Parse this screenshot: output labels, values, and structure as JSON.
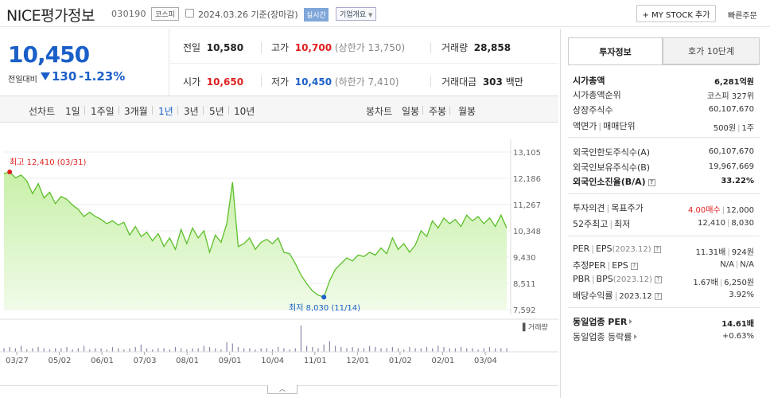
{
  "header": {
    "name": "NICE평가정보",
    "code": "030190",
    "market": "코스피",
    "date": "2024.03.26",
    "basis": "기준(장마감)",
    "live": "실시간",
    "corp_overview": "기업개요",
    "mystock": "+ MY STOCK 추가",
    "fast_order": "빠른주문"
  },
  "price": {
    "current": "10,450",
    "change_label": "전일대비",
    "change": "130",
    "change_pct": "-1.23%",
    "color": "#1a5fc8"
  },
  "quote": {
    "prev_close_label": "전일",
    "prev_close": "10,580",
    "high_label": "고가",
    "high": "10,700",
    "upper_limit": "(상한가 13,750)",
    "volume_label": "거래량",
    "volume": "28,858",
    "open_label": "시가",
    "open": "10,650",
    "low_label": "저가",
    "low": "10,450",
    "lower_limit": "(하한가 7,410)",
    "amount_label": "거래대금",
    "amount": "303",
    "amount_unit": "백만"
  },
  "periods": {
    "line_label": "선차트",
    "items": [
      "1일",
      "1주일",
      "3개월",
      "1년",
      "3년",
      "5년",
      "10년"
    ],
    "active": "1년",
    "candle_label": "봉차트",
    "candle_items": [
      "일봉",
      "주봉",
      "월봉"
    ]
  },
  "chart_data": {
    "type": "area",
    "y_ticks": [
      "13,105",
      "12,186",
      "11,267",
      "10,348",
      "9,430",
      "8,511",
      "7,592"
    ],
    "ylim": [
      7592,
      13105
    ],
    "x_ticks": [
      "03/27",
      "05/02",
      "06/01",
      "07/03",
      "08/01",
      "09/01",
      "10/04",
      "11/01",
      "12/01",
      "01/02",
      "02/01",
      "03/04"
    ],
    "high_annotation": "최고 12,410 (03/31)",
    "low_annotation": "최저 8,030 (11/14)",
    "volume_label": "거래량",
    "series": [
      {
        "values": [
          12350,
          12410,
          12200,
          12300,
          12100,
          11650,
          12000,
          11500,
          11700,
          11300,
          11550,
          11450,
          11250,
          11100,
          10850,
          11000,
          10850,
          10750,
          10600,
          10700,
          10550,
          10650,
          10200,
          10500,
          10150,
          10300,
          10000,
          10250,
          9800,
          10100,
          9700,
          10400,
          9900,
          10450,
          10100,
          10350,
          9600,
          10200,
          9950,
          10600,
          12050,
          9800,
          9900,
          10100,
          9700,
          9950,
          10050,
          9900,
          10100,
          9600,
          9550,
          9200,
          8800,
          8500,
          8250,
          8100,
          8030,
          8600,
          9000,
          9200,
          9400,
          9300,
          9500,
          9450,
          9600,
          9500,
          9750,
          9550,
          10100,
          9700,
          9900,
          9600,
          9850,
          10350,
          10150,
          10700,
          10450,
          10800,
          10600,
          10750,
          10500,
          10900,
          10700,
          10850,
          10600,
          10800,
          10500,
          10900,
          10450
        ]
      }
    ],
    "volume": [
      3,
      4,
      3,
      5,
      2,
      3,
      4,
      3,
      2,
      3,
      3,
      4,
      2,
      3,
      5,
      2,
      3,
      3,
      2,
      4,
      3,
      2,
      3,
      4,
      6,
      3,
      2,
      3,
      3,
      2,
      4,
      3,
      2,
      3,
      3,
      5,
      4,
      3,
      2,
      8,
      7,
      4,
      3,
      3,
      2,
      3,
      3,
      2,
      4,
      3,
      2,
      3,
      22,
      5,
      4,
      3,
      6,
      9,
      5,
      4,
      3,
      4,
      3,
      3,
      5,
      4,
      3,
      3,
      4,
      3,
      2,
      4,
      3,
      3,
      4,
      3,
      5,
      4,
      3,
      3,
      4,
      3,
      3,
      2,
      3,
      4,
      3,
      3,
      3
    ],
    "colors": {
      "line": "#5cbf2a",
      "fill_top": "#c8f0a8",
      "fill_bottom": "#f0fbe8",
      "high": "#e02020",
      "low": "#1a5fc8"
    }
  },
  "side_panel": {
    "tab_invest": "투자정보",
    "tab_hoga": "호가 10단계",
    "market_cap_label": "시가총액",
    "market_cap": "6,281억원",
    "cap_rank_label": "시가총액순위",
    "cap_rank": "코스피 327위",
    "shares_label": "상장주식수",
    "shares": "60,107,670",
    "par_label": "액면가",
    "unit_label": "매매단위",
    "par": "500원",
    "unit": "1주",
    "foreign_limit_label": "외국인한도주식수(A)",
    "foreign_limit": "60,107,670",
    "foreign_hold_label": "외국인보유주식수(B)",
    "foreign_hold": "19,967,669",
    "foreign_ratio_label": "외국인소진율(B/A)",
    "foreign_ratio": "33.22%",
    "opinion_label": "투자의견",
    "target_label": "목표주가",
    "opinion": "4.00매수",
    "target": "12,000",
    "w52_label": "52주최고",
    "w52_low_label": "최저",
    "w52_high": "12,410",
    "w52_low": "8,030",
    "per_label": "PER",
    "eps_label": "EPS",
    "eps_year": "(2023.12)",
    "per": "11.31배",
    "eps": "924원",
    "est_per_label": "추정PER",
    "est_eps_label": "EPS",
    "est_per": "N/A",
    "est_eps": "N/A",
    "pbr_label": "PBR",
    "bps_label": "BPS",
    "bps_year": "(2023.12)",
    "pbr": "1.67배",
    "bps": "6,250원",
    "div_label": "배당수익률",
    "div_year": "2023.12",
    "div": "3.92%",
    "sector_per_label": "동일업종 PER",
    "sector_per": "14.61배",
    "sector_rate_label": "동일업종 등락률",
    "sector_rate": "+0.63%"
  }
}
